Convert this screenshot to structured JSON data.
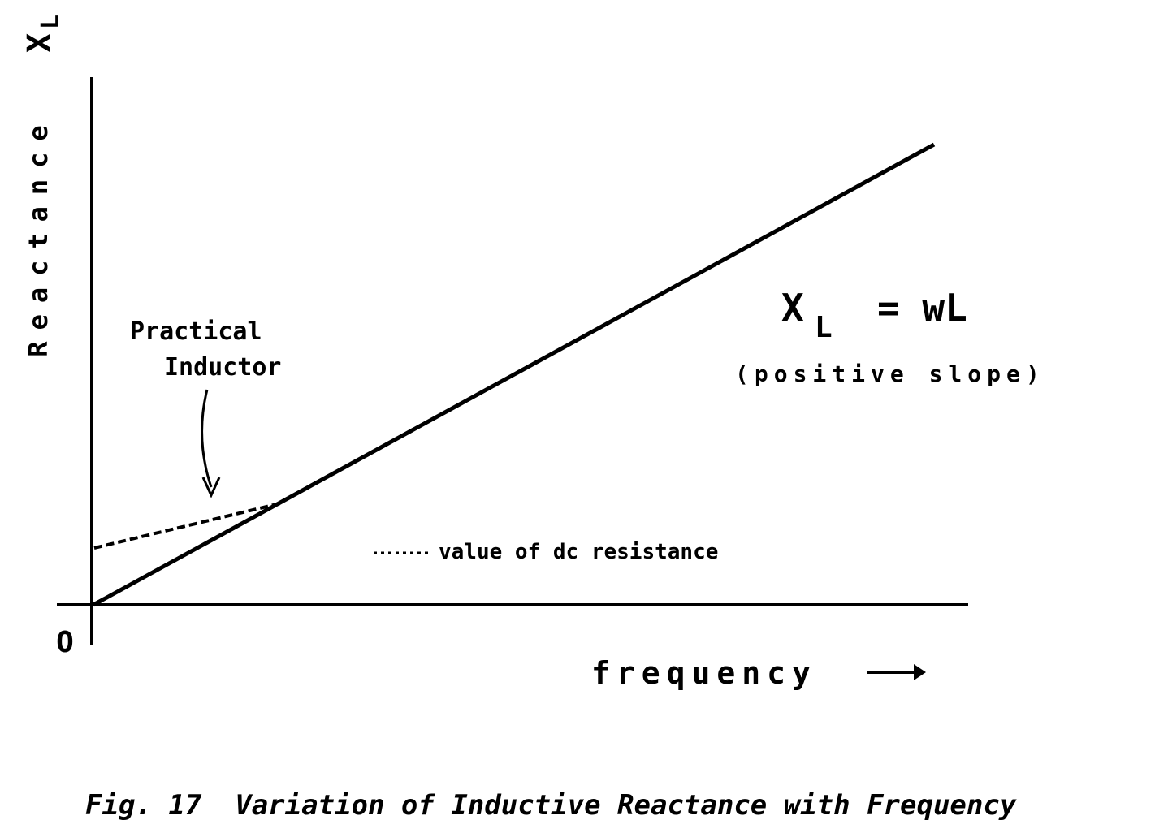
{
  "axes": {
    "y_label": "Reactance",
    "y_symbol": "X",
    "y_subscript": "L",
    "origin": "O",
    "x_label": "frequency"
  },
  "annotations": {
    "practical_line1": "Practical",
    "practical_line2": "Inductor",
    "dc_note": "value of dc resistance"
  },
  "formula": {
    "symbol": "X",
    "subscript": "L",
    "rhs": "= wL",
    "note": "(positive slope)"
  },
  "caption": "Fig. 17  Variation of Inductive Reactance with Frequency"
}
